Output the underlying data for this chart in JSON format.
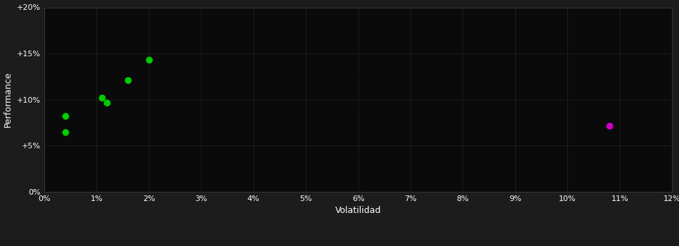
{
  "background_color": "#1c1c1c",
  "plot_bg_color": "#0a0a0a",
  "grid_color": "#404040",
  "text_color": "#ffffff",
  "xlabel": "Volatilidad",
  "ylabel": "Performance",
  "xlim": [
    0,
    0.12
  ],
  "ylim": [
    0,
    0.2
  ],
  "xticks": [
    0.0,
    0.01,
    0.02,
    0.03,
    0.04,
    0.05,
    0.06,
    0.07,
    0.08,
    0.09,
    0.1,
    0.11,
    0.12
  ],
  "yticks": [
    0.0,
    0.05,
    0.1,
    0.15,
    0.2
  ],
  "ytick_labels": [
    "0%",
    "+5%",
    "+10%",
    "+15%",
    "+20%"
  ],
  "xtick_labels": [
    "0%",
    "1%",
    "2%",
    "3%",
    "4%",
    "5%",
    "6%",
    "7%",
    "8%",
    "9%",
    "10%",
    "11%",
    "12%"
  ],
  "green_points": [
    [
      0.004,
      0.082
    ],
    [
      0.004,
      0.065
    ],
    [
      0.011,
      0.102
    ],
    [
      0.012,
      0.097
    ],
    [
      0.016,
      0.121
    ],
    [
      0.02,
      0.143
    ]
  ],
  "magenta_points": [
    [
      0.108,
      0.072
    ]
  ],
  "green_color": "#00cc00",
  "magenta_color": "#cc00cc",
  "marker_size": 6
}
